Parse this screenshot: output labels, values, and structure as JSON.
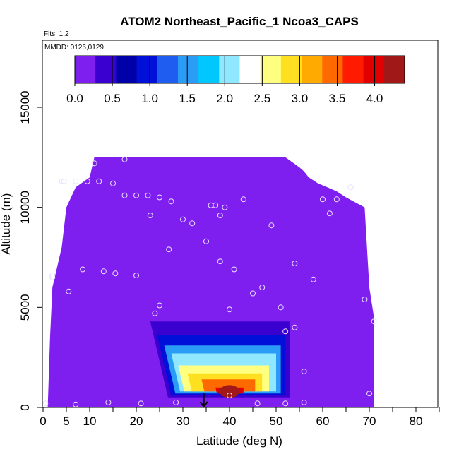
{
  "chart_data": {
    "type": "heatmap",
    "title": "ATOM2 Northeast_Pacific_1 Ncoa3_CAPS",
    "annotations": [
      "Flts: 1,2",
      "MMDD: 0126,0129"
    ],
    "xlabel": "Latitude (deg N)",
    "ylabel": "Altitude (m)",
    "xlim": [
      0,
      85
    ],
    "ylim": [
      0,
      18000
    ],
    "x_ticks": [
      0,
      5,
      10,
      20,
      30,
      40,
      50,
      60,
      70,
      80
    ],
    "x_minor_ticks": [
      15,
      25,
      35,
      45,
      55,
      65,
      75,
      85
    ],
    "y_ticks": [
      0,
      5000,
      10000,
      15000
    ],
    "colorbar": {
      "range": [
        0,
        4.4
      ],
      "ticks": [
        0.0,
        0.5,
        1.0,
        1.5,
        2.0,
        2.5,
        3.0,
        3.5,
        4.0
      ],
      "tick_labels": [
        "0.0",
        "0.5",
        "1.0",
        "1.5",
        "2.0",
        "2.5",
        "3.0",
        "3.5",
        "4.0"
      ],
      "colors": [
        "#7e1ff0",
        "#3a00d0",
        "#0000a8",
        "#0010d8",
        "#1e5df0",
        "#2a9cf5",
        "#00c8ff",
        "#8fe8ff",
        "#ffffff",
        "#ffff80",
        "#ffe020",
        "#ffaa00",
        "#ff6a00",
        "#ff1a00",
        "#e00000",
        "#a01818"
      ]
    },
    "background_value": 0.0,
    "field_outline": {
      "x": [
        1,
        1.5,
        2,
        3,
        4,
        5,
        7,
        10,
        11,
        52,
        55,
        56,
        57,
        59,
        61,
        63,
        65,
        69,
        70,
        71,
        71,
        70,
        69,
        57,
        55,
        40,
        30,
        25,
        20,
        10,
        5,
        3,
        1
      ],
      "y": [
        0,
        3500,
        6000,
        7000,
        8000,
        10000,
        11000,
        11500,
        12500,
        12500,
        12000,
        11800,
        11500,
        11200,
        11000,
        10800,
        10500,
        10000,
        6000,
        4500,
        0,
        0,
        0,
        0,
        0,
        0,
        0,
        0,
        0,
        0,
        0,
        0,
        0
      ]
    },
    "enhanced_region": {
      "description_values": "concentration maximum near 40N, 1 km",
      "levels": [
        {
          "value": 0.5,
          "x": [
            23,
            53
          ],
          "y": [
            500,
            4300
          ]
        },
        {
          "value": 1.0,
          "x": [
            24.5,
            52
          ],
          "y": [
            600,
            3600
          ]
        },
        {
          "value": 1.5,
          "x": [
            26,
            51
          ],
          "y": [
            700,
            3100
          ]
        },
        {
          "value": 2.0,
          "x": [
            27.5,
            50
          ],
          "y": [
            800,
            2700
          ]
        },
        {
          "value": 2.5,
          "x": [
            29,
            48.5
          ],
          "y": [
            800,
            2100
          ]
        },
        {
          "value": 3.0,
          "x": [
            31,
            47
          ],
          "y": [
            800,
            1700
          ]
        },
        {
          "value": 3.5,
          "x": [
            34,
            45.5
          ],
          "y": [
            800,
            1400
          ]
        },
        {
          "value": 4.0,
          "x": [
            37,
            43
          ],
          "y": [
            700,
            1000
          ]
        }
      ],
      "max_value": 4.3,
      "max_location": [
        40,
        800
      ]
    },
    "arrow_marker": {
      "x": 34.5,
      "y_top": 700,
      "y_bottom": 0
    },
    "sample_points": [
      {
        "x": 0.5,
        "y": 200
      },
      {
        "x": 7,
        "y": 150
      },
      {
        "x": 14,
        "y": 250
      },
      {
        "x": 21,
        "y": 200
      },
      {
        "x": 28.5,
        "y": 250
      },
      {
        "x": 40,
        "y": 600
      },
      {
        "x": 46,
        "y": 200
      },
      {
        "x": 52,
        "y": 200
      },
      {
        "x": 56,
        "y": 250
      },
      {
        "x": 70,
        "y": 700
      },
      {
        "x": 52,
        "y": 3800
      },
      {
        "x": 54,
        "y": 4000
      },
      {
        "x": 56,
        "y": 1800
      },
      {
        "x": 24,
        "y": 4700
      },
      {
        "x": 25,
        "y": 5100
      },
      {
        "x": 40,
        "y": 4900
      },
      {
        "x": 51,
        "y": 5000
      },
      {
        "x": 45,
        "y": 5700
      },
      {
        "x": 47,
        "y": 6000
      },
      {
        "x": 69,
        "y": 5400
      },
      {
        "x": 71,
        "y": 4300
      },
      {
        "x": 5.5,
        "y": 5800
      },
      {
        "x": 2,
        "y": 6500
      },
      {
        "x": 2,
        "y": 6600
      },
      {
        "x": 8.5,
        "y": 6900
      },
      {
        "x": 13,
        "y": 6800
      },
      {
        "x": 15.5,
        "y": 6700
      },
      {
        "x": 20,
        "y": 6600
      },
      {
        "x": 41,
        "y": 6900
      },
      {
        "x": 38,
        "y": 7300
      },
      {
        "x": 54,
        "y": 7200
      },
      {
        "x": 58,
        "y": 6400
      },
      {
        "x": 27,
        "y": 7900
      },
      {
        "x": 35,
        "y": 8300
      },
      {
        "x": 49,
        "y": 9100
      },
      {
        "x": 30,
        "y": 9400
      },
      {
        "x": 32,
        "y": 9200
      },
      {
        "x": 38,
        "y": 9600
      },
      {
        "x": 23,
        "y": 9600
      },
      {
        "x": 36,
        "y": 10100
      },
      {
        "x": 37,
        "y": 10100
      },
      {
        "x": 39,
        "y": 10000
      },
      {
        "x": 43,
        "y": 10400
      },
      {
        "x": 60,
        "y": 10400
      },
      {
        "x": 61.5,
        "y": 9700
      },
      {
        "x": 63,
        "y": 10400
      },
      {
        "x": 66,
        "y": 11000
      },
      {
        "x": 17.5,
        "y": 10600
      },
      {
        "x": 20,
        "y": 10600
      },
      {
        "x": 22.5,
        "y": 10600
      },
      {
        "x": 25,
        "y": 10500
      },
      {
        "x": 27.5,
        "y": 10300
      },
      {
        "x": 4,
        "y": 11300
      },
      {
        "x": 4.5,
        "y": 11300
      },
      {
        "x": 7,
        "y": 11300
      },
      {
        "x": 9.5,
        "y": 11300
      },
      {
        "x": 12,
        "y": 11300
      },
      {
        "x": 15,
        "y": 11200
      },
      {
        "x": 11,
        "y": 12200
      },
      {
        "x": 17.5,
        "y": 12400
      }
    ]
  }
}
